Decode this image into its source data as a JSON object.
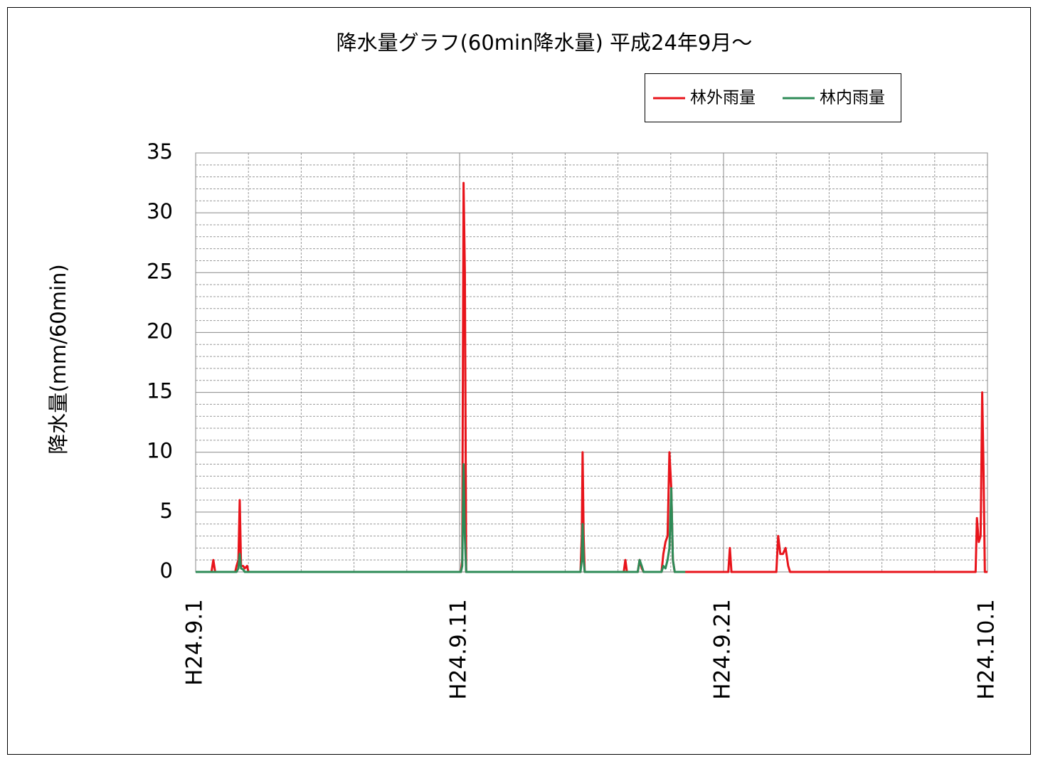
{
  "chart_data": {
    "type": "line",
    "title": "降水量グラフ(60min降水量) 平成24年9月～",
    "y_label": "降水量(mm/60min)",
    "x": [
      0,
      0.6,
      0.67,
      0.74,
      1.5,
      1.55,
      1.62,
      1.67,
      1.72,
      1.8,
      1.86,
      1.95,
      2.0,
      10.05,
      10.1,
      10.15,
      10.2,
      10.25,
      14.58,
      14.63,
      14.66,
      14.7,
      14.74,
      16.22,
      16.28,
      16.34,
      16.75,
      16.82,
      16.9,
      16.97,
      17.65,
      17.72,
      17.8,
      17.88,
      17.95,
      18.02,
      18.08,
      18.15,
      18.55,
      18.6,
      20.18,
      20.24,
      20.3,
      22.0,
      22.07,
      22.15,
      22.25,
      22.35,
      22.45,
      22.52,
      29.55,
      29.6,
      29.67,
      29.74,
      29.8,
      29.85,
      29.9,
      30
    ],
    "series": [
      {
        "name": "林外雨量",
        "color": "#e8141b",
        "values": [
          0,
          0,
          1,
          0,
          0,
          0.5,
          1,
          6,
          0.5,
          0.5,
          0.3,
          0.5,
          0,
          0,
          1,
          32.5,
          25,
          0,
          0,
          3,
          10,
          3,
          0,
          0,
          1,
          0,
          0,
          1,
          0.3,
          0,
          0,
          1.5,
          2.5,
          3,
          10,
          7,
          1,
          0,
          0,
          0,
          0,
          2,
          0,
          0,
          3,
          1.5,
          1.5,
          2,
          0.5,
          0,
          0,
          4.5,
          2.5,
          3,
          15,
          8.5,
          0,
          0
        ]
      },
      {
        "name": "林内雨量",
        "color": "#2e8b57",
        "values": [
          0,
          0,
          0,
          0,
          0,
          0,
          0.3,
          1.5,
          0.3,
          0.2,
          0,
          0,
          0,
          0,
          0.5,
          9,
          3,
          0,
          0,
          1,
          4,
          1,
          0,
          0,
          0,
          0,
          0,
          1,
          0.5,
          0,
          0,
          0.5,
          0.3,
          1,
          2,
          7,
          1,
          0,
          0,
          null,
          null,
          null,
          null,
          null,
          null,
          null,
          null,
          null,
          null,
          null,
          null,
          null,
          null,
          null,
          null,
          null,
          null,
          null
        ]
      }
    ],
    "xlim": [
      0,
      30
    ],
    "xticks": [
      {
        "value": 0,
        "label": "H24.9.1"
      },
      {
        "value": 10,
        "label": "H24.9.11"
      },
      {
        "value": 20,
        "label": "H24.9.21"
      },
      {
        "value": 30,
        "label": "H24.10.1"
      }
    ],
    "ylim": [
      0,
      35
    ],
    "yticks": [
      0,
      5,
      10,
      15,
      20,
      25,
      30,
      35
    ],
    "grid": true,
    "legend": "top-right"
  }
}
